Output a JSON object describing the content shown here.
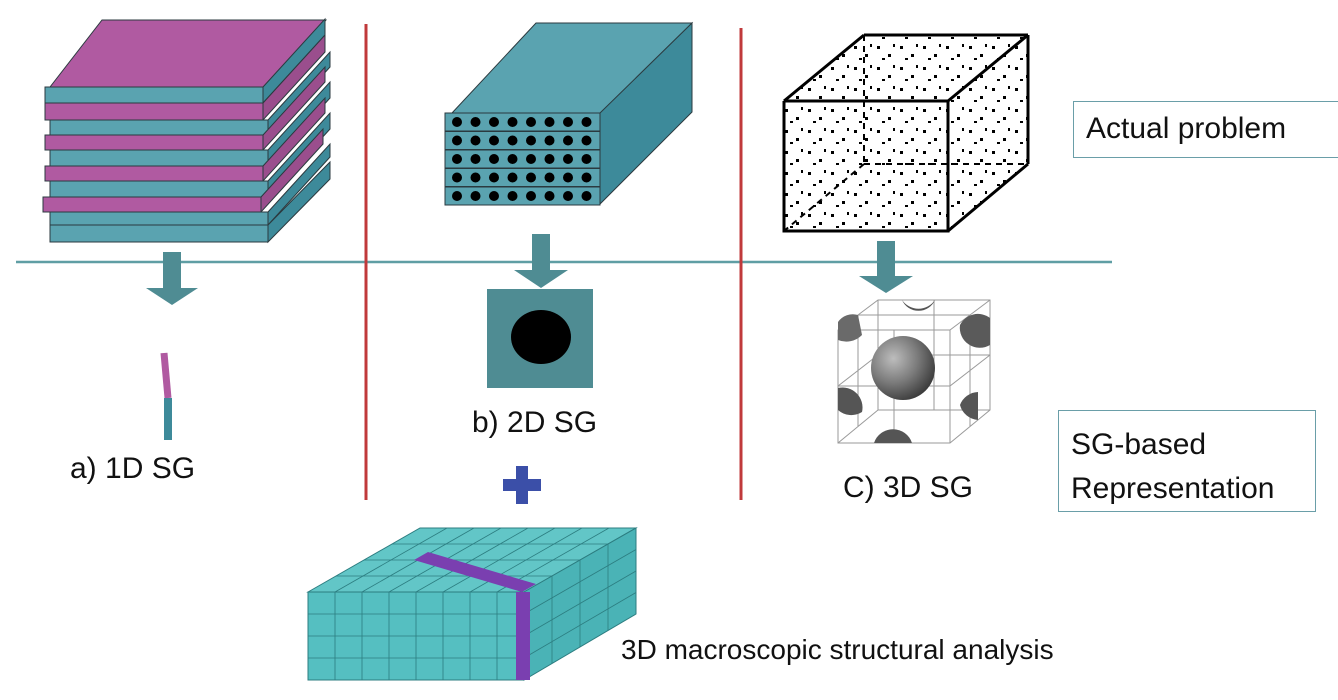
{
  "labels": {
    "sg_1d": "a) 1D SG",
    "sg_2d": "b) 2D SG",
    "sg_3d": "C) 3D SG",
    "macro": "3D macroscopic structural analysis"
  },
  "side_boxes": {
    "actual": "Actual problem",
    "sg_line1": "SG-based",
    "sg_line2": "Representation"
  },
  "colors": {
    "magenta": "#b05aa1",
    "teal": "#3d8a9a",
    "teal_light": "#5aa3b0",
    "arrow": "#4f8c93",
    "divider_red": "#c0393b",
    "hline": "#5f9ea4",
    "plus": "#3b4fa8",
    "mesh": "#55c4c6",
    "stripe": "#7a3fb0"
  }
}
